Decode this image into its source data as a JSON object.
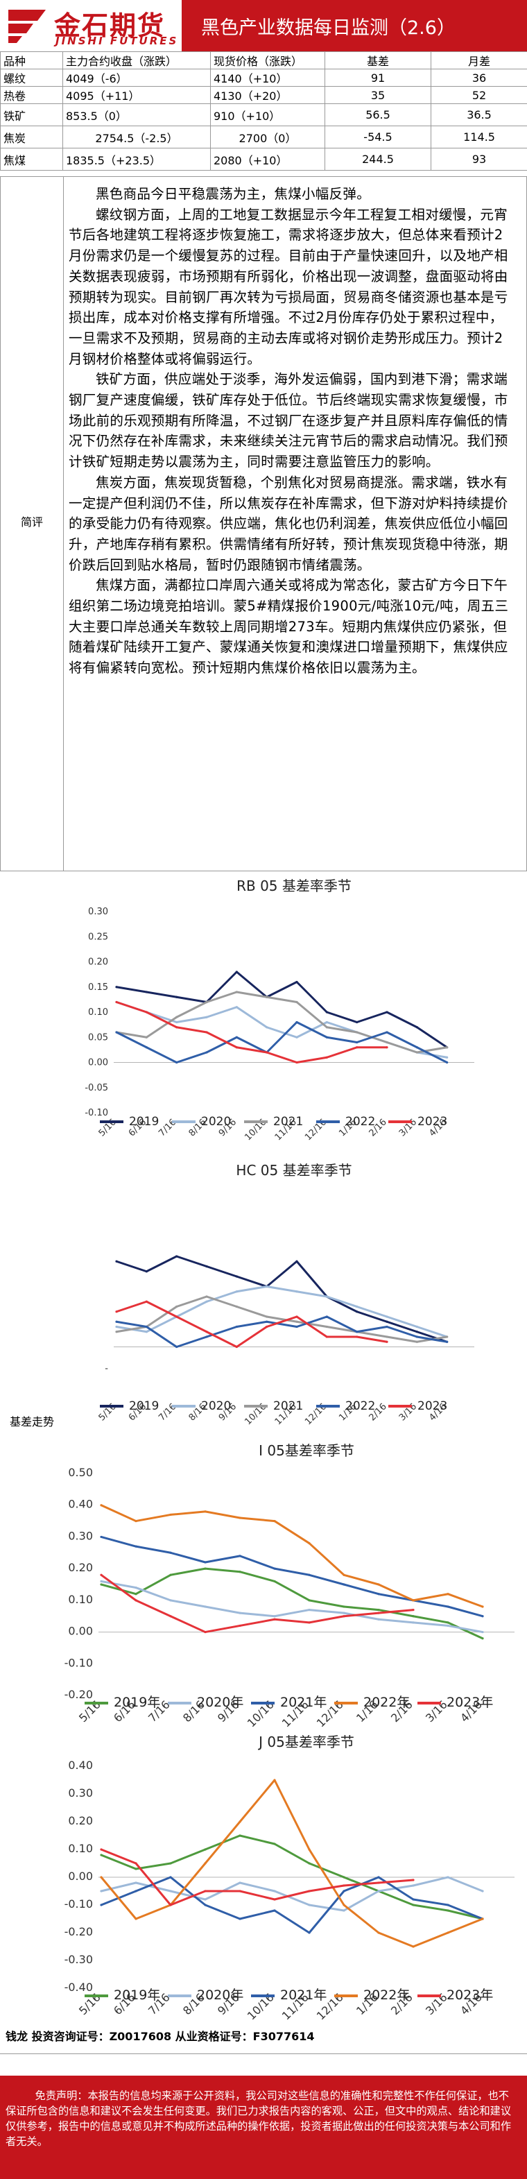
{
  "header": {
    "logo_cn": "金石期货",
    "logo_en": "JINSHI FUTURES",
    "title": "黑色产业数据每日监测（2.6）",
    "brand_color": "#c4151c"
  },
  "table": {
    "headers": [
      "品种",
      "主力合约收盘（涨跌）",
      "现货价格（涨跌）",
      "基差",
      "月差"
    ],
    "rows": [
      [
        "螺纹",
        "4049（-6）",
        "4140（+10）",
        "91",
        "36"
      ],
      [
        "热卷",
        "4095（+11）",
        "4130（+20）",
        "35",
        "52"
      ],
      [
        "铁矿",
        "853.5（0）",
        "910（+10）",
        "56.5",
        "36.5"
      ],
      [
        "焦炭",
        "2754.5（-2.5）",
        "2700（0）",
        "-54.5",
        "114.5"
      ],
      [
        "焦煤",
        "1835.5（+23.5）",
        "2080（+10）",
        "244.5",
        "93"
      ]
    ]
  },
  "commentary": {
    "label": "简评",
    "paragraphs": [
      "黑色商品今日平稳震荡为主，焦煤小幅反弹。",
      "螺纹钢方面，上周的工地复工数据显示今年工程复工相对缓慢，元宵节后各地建筑工程将逐步恢复施工，需求将逐步放大，但总体来看预计2月份需求仍是一个缓慢复苏的过程。目前由于产量快速回升，以及地产相关数据表现疲弱，市场预期有所弱化，价格出现一波调整，盘面驱动将由预期转为现实。目前钢厂再次转为亏损局面，贸易商冬储资源也基本是亏损出库，成本对价格支撑有所增强。不过2月份库存仍处于累积过程中，一旦需求不及预期，贸易商的主动去库或将对钢价走势形成压力。预计2月钢材价格整体或将偏弱运行。",
      "铁矿方面，供应端处于淡季，海外发运偏弱，国内到港下滑；需求端钢厂复产速度偏缓，铁矿库存处于低位。节后终端现实需求恢复缓慢，市场此前的乐观预期有所降温，不过钢厂在逐步复产并且原料库存偏低的情况下仍然存在补库需求，未来继续关注元宵节后的需求启动情况。我们预计铁矿短期走势以震荡为主，同时需要注意监管压力的影响。",
      "焦炭方面，焦炭现货暂稳，个别焦化对贸易商提涨。需求端，铁水有一定提产但利润仍不佳，所以焦炭存在补库需求，但下游对炉料持续提价的承受能力仍有待观察。供应端，焦化也仍利润差，焦炭供应低位小幅回升，产地库存稍有累积。供需情绪有所好转，预计焦炭现货稳中待涨，期价跌后回到贴水格局，暂时仍跟随钢市情绪震荡。",
      "焦煤方面，满都拉口岸周六通关或将成为常态化，蒙古矿方今日下午组织第二场边境竞拍培训。蒙5#精煤报价1900元/吨涨10元/吨，周五三大主要口岸总通关车数较上周同期增273车。短期内焦煤供应仍紧张，但随着煤矿陆续开工复产、蒙煤通关恢复和澳煤进口增量预期下，焦煤供应将有偏紧转向宽松。预计短期内焦煤价格依旧以震荡为主。"
    ]
  },
  "basis_label": "基差走势",
  "charts": [
    {
      "title": "RB 05 基差率季节",
      "ylim": [
        -0.1,
        0.3
      ],
      "yticks": [
        "0.30",
        "0.25",
        "0.20",
        "0.15",
        "0.10",
        "0.05",
        "0.00",
        "-0.05",
        "-0.10"
      ],
      "xticks": [
        "5/16",
        "6/16",
        "7/16",
        "8/16",
        "9/16",
        "10/16",
        "11/16",
        "12/16",
        "1/16",
        "2/16",
        "3/16",
        "4/16"
      ],
      "legend": [
        "2019",
        "2020",
        "2021",
        "2022",
        "2023"
      ]
    },
    {
      "title": "HC 05 基差率季节",
      "ylim": [
        -0.1,
        0.3
      ],
      "yticks": [
        "",
        "",
        "",
        "",
        "",
        "",
        "-",
        ""
      ],
      "xticks": [
        "5/16",
        "6/16",
        "7/16",
        "8/16",
        "9/16",
        "10/16",
        "11/16",
        "12/16",
        "1/16",
        "2/16",
        "3/16",
        "4/16"
      ],
      "legend": [
        "2019",
        "2020",
        "2021",
        "2022",
        "2023"
      ]
    },
    {
      "title": "I 05基差率季节",
      "ylim": [
        -0.2,
        0.5
      ],
      "yticks": [
        "0.50",
        "0.40",
        "0.30",
        "0.20",
        "0.10",
        "0.00",
        "-0.10",
        "-0.20"
      ],
      "xticks": [
        "5/16",
        "6/16",
        "7/16",
        "8/16",
        "9/16",
        "10/16",
        "11/16",
        "12/16",
        "1/16",
        "2/16",
        "3/16",
        "4/16"
      ],
      "legend": [
        "2019年",
        "2020年",
        "2021年",
        "2022年",
        "2023年"
      ]
    },
    {
      "title": "J 05基差率季节",
      "ylim": [
        -0.4,
        0.4
      ],
      "yticks": [
        "0.40",
        "0.30",
        "0.20",
        "0.10",
        "0.00",
        "-0.10",
        "-0.20",
        "-0.30",
        "-0.40"
      ],
      "xticks": [
        "5/16",
        "6/16",
        "7/16",
        "8/16",
        "9/16",
        "10/16",
        "11/16",
        "12/16",
        "1/16",
        "2/16",
        "3/16",
        "4/16"
      ],
      "legend": [
        "2019年",
        "2020年",
        "2021年",
        "2022年",
        "2023年"
      ]
    }
  ],
  "chart_data": [
    {
      "type": "line",
      "title": "RB 05 基差率季节",
      "categories": [
        "5/16",
        "6/16",
        "7/16",
        "8/16",
        "9/16",
        "10/16",
        "11/16",
        "12/16",
        "1/16",
        "2/16",
        "3/16",
        "4/16"
      ],
      "ylim": [
        -0.1,
        0.3
      ],
      "legend_position": "bottom",
      "series": [
        {
          "name": "2019",
          "color": "#17255e",
          "values": [
            0.15,
            0.14,
            0.13,
            0.12,
            0.18,
            0.13,
            0.16,
            0.1,
            0.08,
            0.1,
            0.07,
            0.03
          ]
        },
        {
          "name": "2020",
          "color": "#9db9d9",
          "values": [
            0.12,
            0.1,
            0.08,
            0.09,
            0.11,
            0.07,
            0.05,
            0.08,
            0.06,
            0.04,
            0.02,
            0.01
          ]
        },
        {
          "name": "2021",
          "color": "#9a9a9a",
          "values": [
            0.06,
            0.05,
            0.09,
            0.12,
            0.14,
            0.13,
            0.12,
            0.07,
            0.06,
            0.04,
            0.02,
            0.03
          ]
        },
        {
          "name": "2022",
          "color": "#2f5ea8",
          "values": [
            0.06,
            0.03,
            0.0,
            0.02,
            0.05,
            0.02,
            0.08,
            0.05,
            0.04,
            0.06,
            0.03,
            0.0
          ]
        },
        {
          "name": "2023",
          "color": "#e53238",
          "values": [
            0.12,
            0.1,
            0.07,
            0.06,
            0.03,
            0.02,
            0.0,
            0.01,
            0.03,
            0.03,
            null,
            null
          ]
        }
      ]
    },
    {
      "type": "line",
      "title": "HC 05 基差率季节",
      "categories": [
        "5/16",
        "6/16",
        "7/16",
        "8/16",
        "9/16",
        "10/16",
        "11/16",
        "12/16",
        "1/16",
        "2/16",
        "3/16",
        "4/16"
      ],
      "ylim": [
        -0.1,
        0.3
      ],
      "legend_position": "bottom",
      "series": [
        {
          "name": "2019",
          "color": "#17255e",
          "values": [
            0.17,
            0.15,
            0.18,
            0.16,
            0.14,
            0.12,
            0.17,
            0.1,
            0.07,
            0.05,
            0.03,
            0.01
          ]
        },
        {
          "name": "2020",
          "color": "#9db9d9",
          "values": [
            0.04,
            0.03,
            0.06,
            0.09,
            0.11,
            0.12,
            0.11,
            0.1,
            0.08,
            0.06,
            0.04,
            0.02
          ]
        },
        {
          "name": "2021",
          "color": "#9a9a9a",
          "values": [
            0.03,
            0.04,
            0.08,
            0.1,
            0.08,
            0.06,
            0.05,
            0.04,
            0.03,
            0.02,
            0.01,
            0.02
          ]
        },
        {
          "name": "2022",
          "color": "#2f5ea8",
          "values": [
            0.05,
            0.04,
            0.0,
            0.02,
            0.04,
            0.05,
            0.04,
            0.06,
            0.03,
            0.04,
            0.02,
            0.01
          ]
        },
        {
          "name": "2023",
          "color": "#e53238",
          "values": [
            0.07,
            0.09,
            0.06,
            0.03,
            0.0,
            0.04,
            0.06,
            0.02,
            0.02,
            0.01,
            null,
            null
          ]
        }
      ]
    },
    {
      "type": "line",
      "title": "I 05基差率季节",
      "categories": [
        "5/16",
        "6/16",
        "7/16",
        "8/16",
        "9/16",
        "10/16",
        "11/16",
        "12/16",
        "1/16",
        "2/16",
        "3/16",
        "4/16"
      ],
      "ylim": [
        -0.2,
        0.5
      ],
      "legend_position": "bottom",
      "series": [
        {
          "name": "2019年",
          "color": "#4e9a3d",
          "values": [
            0.15,
            0.12,
            0.18,
            0.2,
            0.19,
            0.16,
            0.1,
            0.08,
            0.07,
            0.05,
            0.03,
            -0.02
          ]
        },
        {
          "name": "2020年",
          "color": "#9db9d9",
          "values": [
            0.16,
            0.14,
            0.1,
            0.08,
            0.06,
            0.05,
            0.07,
            0.06,
            0.04,
            0.03,
            0.02,
            0.0
          ]
        },
        {
          "name": "2021年",
          "color": "#2f5ea8",
          "values": [
            0.3,
            0.27,
            0.25,
            0.22,
            0.24,
            0.2,
            0.18,
            0.15,
            0.12,
            0.1,
            0.08,
            0.05
          ]
        },
        {
          "name": "2022年",
          "color": "#e47a22",
          "values": [
            0.4,
            0.35,
            0.37,
            0.38,
            0.36,
            0.35,
            0.28,
            0.18,
            0.15,
            0.1,
            0.12,
            0.08
          ]
        },
        {
          "name": "2023年",
          "color": "#e53238",
          "values": [
            0.18,
            0.1,
            0.05,
            0.0,
            0.02,
            0.04,
            0.03,
            0.05,
            0.06,
            0.07,
            null,
            null
          ]
        }
      ]
    },
    {
      "type": "line",
      "title": "J 05基差率季节",
      "categories": [
        "5/16",
        "6/16",
        "7/16",
        "8/16",
        "9/16",
        "10/16",
        "11/16",
        "12/16",
        "1/16",
        "2/16",
        "3/16",
        "4/16"
      ],
      "ylim": [
        -0.4,
        0.4
      ],
      "legend_position": "bottom",
      "series": [
        {
          "name": "2019年",
          "color": "#4e9a3d",
          "values": [
            0.08,
            0.03,
            0.05,
            0.1,
            0.15,
            0.12,
            0.05,
            0.0,
            -0.05,
            -0.1,
            -0.12,
            -0.15
          ]
        },
        {
          "name": "2020年",
          "color": "#9db9d9",
          "values": [
            -0.05,
            -0.02,
            -0.05,
            -0.08,
            -0.02,
            -0.05,
            -0.1,
            -0.12,
            -0.05,
            -0.03,
            0.0,
            -0.05
          ]
        },
        {
          "name": "2021年",
          "color": "#2f5ea8",
          "values": [
            -0.1,
            -0.05,
            0.0,
            -0.1,
            -0.15,
            -0.12,
            -0.2,
            -0.05,
            0.0,
            -0.08,
            -0.1,
            -0.15
          ]
        },
        {
          "name": "2022年",
          "color": "#e47a22",
          "values": [
            0.0,
            -0.15,
            -0.1,
            0.05,
            0.2,
            0.35,
            0.1,
            -0.1,
            -0.2,
            -0.25,
            -0.2,
            -0.15
          ]
        },
        {
          "name": "2023年",
          "color": "#e53238",
          "values": [
            0.1,
            0.05,
            -0.1,
            -0.05,
            -0.05,
            -0.08,
            -0.05,
            -0.03,
            -0.02,
            -0.01,
            null,
            null
          ]
        }
      ]
    }
  ],
  "footer": {
    "analyst": "钱龙 投资咨询证号：Z0017608 从业资格证号：F3077614",
    "disclaimer": "免责声明：本报告的信息均来源于公开资料，我公司对这些信息的准确性和完整性不作任何保证，也不保证所包含的信息和建议不会发生任何变更。我们已力求报告内容的客观、公正，但文中的观点、结论和建议仅供参考，报告中的信息或意见并不构成所述品种的操作依据，投资者据此做出的任何投资决策与本公司和作者无关。"
  }
}
